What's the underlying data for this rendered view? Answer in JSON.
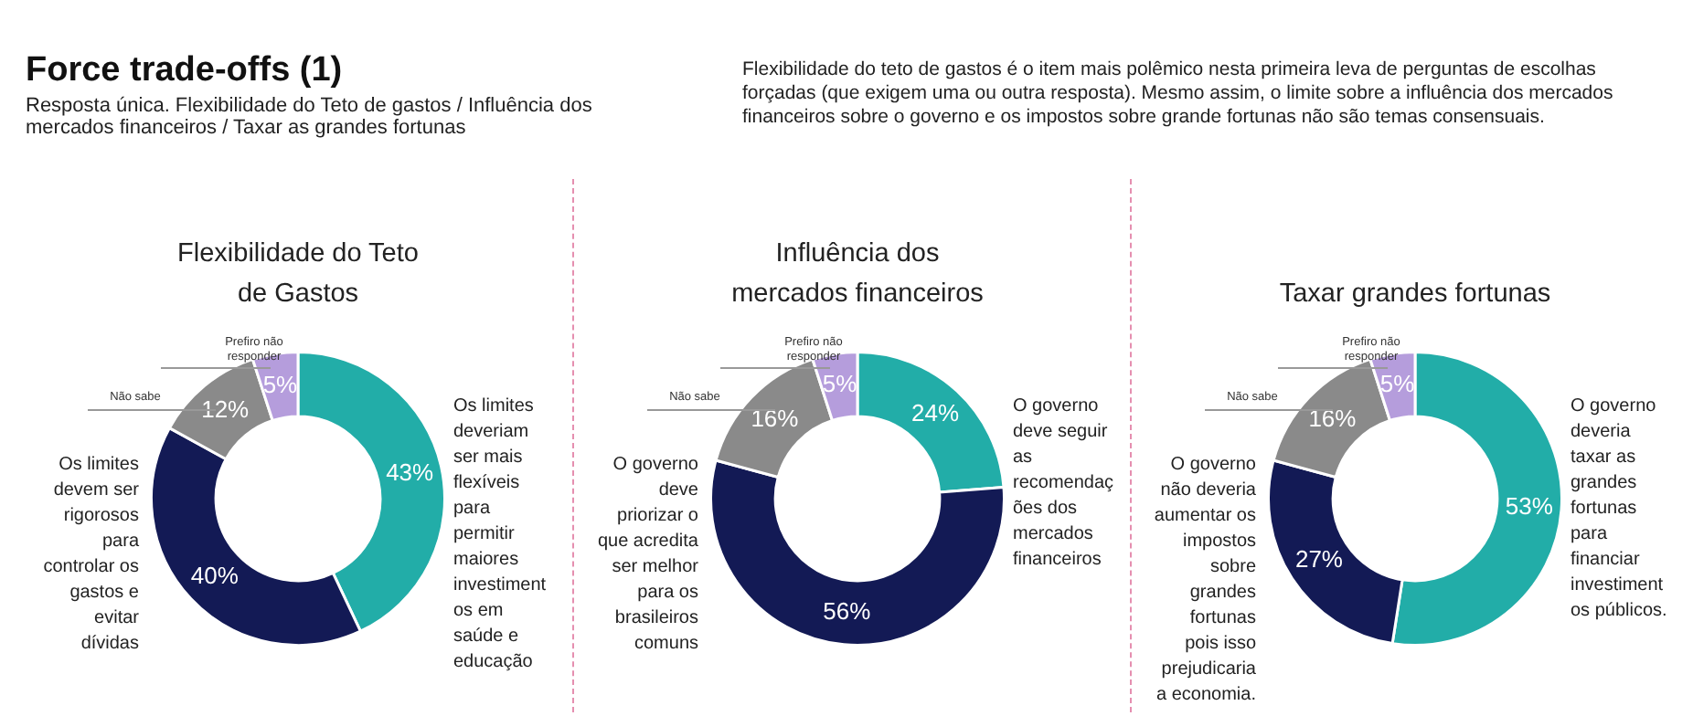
{
  "chart_data": [
    {
      "type": "other",
      "title": "Force trade-offs (1)",
      "subtitle": "Resposta única. Flexibilidade do Teto de gastos / Influência dos mercados financeiros / Taxar as grandes fortunas",
      "annotations": [
        "Flexibilidade do teto de gastos é o item mais polêmico nesta primeira leva de perguntas de escolhas forçadas (que exigem uma ou outra resposta). Mesmo assim, o limite sobre a influência dos mercados financeiros sobre o governo e os impostos sobre grande fortunas não são temas consensuais."
      ]
    },
    {
      "type": "donut",
      "title": "Flexibilidade do Teto de Gastos",
      "categories": [
        "Os limites deveriam ser mais flexíveis para permitir maiores investimentos em saúde e educação",
        "Os limites devem ser rigorosos para controlar os gastos e evitar dívidas",
        "Não sabe",
        "Prefiro não responder"
      ],
      "values": [
        43,
        40,
        12,
        5
      ],
      "value_labels": [
        "43%",
        "40%",
        "12%",
        "5%"
      ],
      "colors": [
        "#22ada8",
        "#131a55",
        "#8a8a8a",
        "#b59ddc"
      ]
    },
    {
      "type": "donut",
      "title": "Influência dos mercados financeiros",
      "categories": [
        "O governo deve seguir as recomendações dos mercados financeiros",
        "O governo deve priorizar o que acredita ser melhor para os brasileiros comuns",
        "Não sabe",
        "Prefiro não responder"
      ],
      "values": [
        24,
        56,
        16,
        5
      ],
      "value_labels": [
        "24%",
        "56%",
        "16%",
        "5%"
      ],
      "colors": [
        "#22ada8",
        "#131a55",
        "#8a8a8a",
        "#b59ddc"
      ]
    },
    {
      "type": "donut",
      "title": "Taxar grandes fortunas",
      "categories": [
        "O governo deveria taxar as grandes fortunas para financiar investimentos públicos.",
        "O governo não deveria aumentar os impostos sobre grandes fortunas pois isso prejudicaria a economia.",
        "Não sabe",
        "Prefiro não responder"
      ],
      "values": [
        53,
        27,
        16,
        5
      ],
      "value_labels": [
        "53%",
        "27%",
        "16%",
        "5%"
      ],
      "colors": [
        "#22ada8",
        "#131a55",
        "#8a8a8a",
        "#b59ddc"
      ]
    }
  ]
}
